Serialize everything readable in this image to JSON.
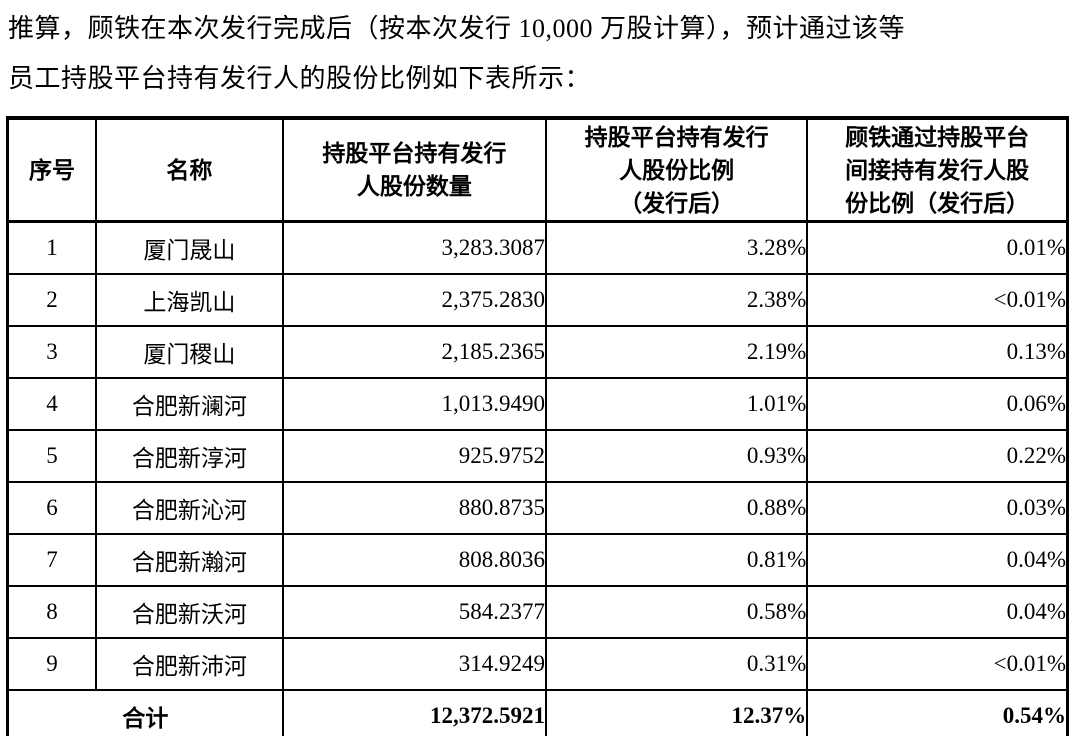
{
  "intro": {
    "line1": "推算，顾铁在本次发行完成后（按本次发行 10,000 万股计算），预计通过该等",
    "line2": "员工持股平台持有发行人的股份比例如下表所示："
  },
  "table": {
    "headers": {
      "no": "序号",
      "name": "名称",
      "shares": "持股平台持有发行\n人股份数量",
      "ratio": "持股平台持有发行\n人股份比例\n（发行后）",
      "indirect": "顾铁通过持股平台\n间接持有发行人股\n份比例（发行后）"
    },
    "rows": [
      {
        "no": "1",
        "name": "厦门晟山",
        "shares": "3,283.3087",
        "ratio": "3.28%",
        "indirect": "0.01%"
      },
      {
        "no": "2",
        "name": "上海凯山",
        "shares": "2,375.2830",
        "ratio": "2.38%",
        "indirect": "<0.01%"
      },
      {
        "no": "3",
        "name": "厦门稷山",
        "shares": "2,185.2365",
        "ratio": "2.19%",
        "indirect": "0.13%"
      },
      {
        "no": "4",
        "name": "合肥新澜河",
        "shares": "1,013.9490",
        "ratio": "1.01%",
        "indirect": "0.06%"
      },
      {
        "no": "5",
        "name": "合肥新淳河",
        "shares": "925.9752",
        "ratio": "0.93%",
        "indirect": "0.22%"
      },
      {
        "no": "6",
        "name": "合肥新沁河",
        "shares": "880.8735",
        "ratio": "0.88%",
        "indirect": "0.03%"
      },
      {
        "no": "7",
        "name": "合肥新瀚河",
        "shares": "808.8036",
        "ratio": "0.81%",
        "indirect": "0.04%"
      },
      {
        "no": "8",
        "name": "合肥新沃河",
        "shares": "584.2377",
        "ratio": "0.58%",
        "indirect": "0.04%"
      },
      {
        "no": "9",
        "name": "合肥新沛河",
        "shares": "314.9249",
        "ratio": "0.31%",
        "indirect": "<0.01%"
      }
    ],
    "total": {
      "label": "合计",
      "shares": "12,372.5921",
      "ratio": "12.37%",
      "indirect": "0.54%"
    }
  }
}
